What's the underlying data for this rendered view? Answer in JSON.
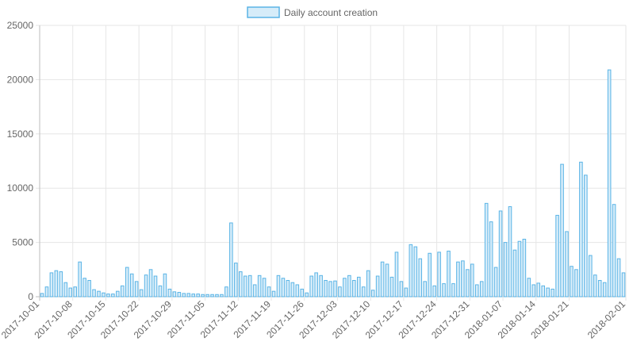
{
  "chart_data": {
    "type": "bar",
    "legend": {
      "position": "top",
      "entries": [
        {
          "label": "Daily account creation"
        }
      ]
    },
    "series": [
      {
        "name": "Daily account creation",
        "color": "#5ab4e6",
        "fill": "#d6ecf9"
      }
    ],
    "x_start": "2017-10-01",
    "x_tick_labels": [
      "2017-10-01",
      "2017-10-08",
      "2017-10-15",
      "2017-10-22",
      "2017-10-29",
      "2017-11-05",
      "2017-11-12",
      "2017-11-19",
      "2017-11-26",
      "2017-12-03",
      "2017-12-10",
      "2017-12-17",
      "2017-12-24",
      "2017-12-31",
      "2018-01-07",
      "2018-01-14",
      "2018-01-21",
      "2018-02-01"
    ],
    "y_ticks": [
      0,
      5000,
      10000,
      15000,
      20000,
      25000
    ],
    "ylim": [
      0,
      25000
    ],
    "grid": true,
    "values": [
      300,
      900,
      2200,
      2400,
      2300,
      1300,
      800,
      900,
      3200,
      1700,
      1500,
      650,
      500,
      350,
      250,
      250,
      500,
      1000,
      2700,
      2100,
      1400,
      650,
      2000,
      2500,
      1900,
      1000,
      2100,
      700,
      450,
      400,
      300,
      300,
      250,
      250,
      200,
      200,
      200,
      200,
      200,
      900,
      6800,
      3100,
      2300,
      1900,
      1950,
      1100,
      1950,
      1700,
      900,
      500,
      1950,
      1700,
      1500,
      1300,
      1100,
      700,
      350,
      1900,
      2200,
      1950,
      1500,
      1400,
      1450,
      900,
      1700,
      1950,
      1500,
      1800,
      900,
      2400,
      600,
      1900,
      3200,
      3000,
      1800,
      4100,
      1400,
      800,
      4800,
      4600,
      3500,
      1400,
      4000,
      1000,
      4100,
      1200,
      4200,
      1200,
      3200,
      3300,
      2500,
      3000,
      1100,
      1400,
      8600,
      6900,
      2700,
      7900,
      5000,
      8300,
      4300,
      5100,
      5300,
      1700,
      1100,
      1250,
      1000,
      800,
      700,
      7500,
      12200,
      6000,
      2800,
      2500,
      12400,
      11200,
      3800,
      2000,
      1500,
      1300,
      20900,
      8500,
      3500,
      2200
    ]
  }
}
